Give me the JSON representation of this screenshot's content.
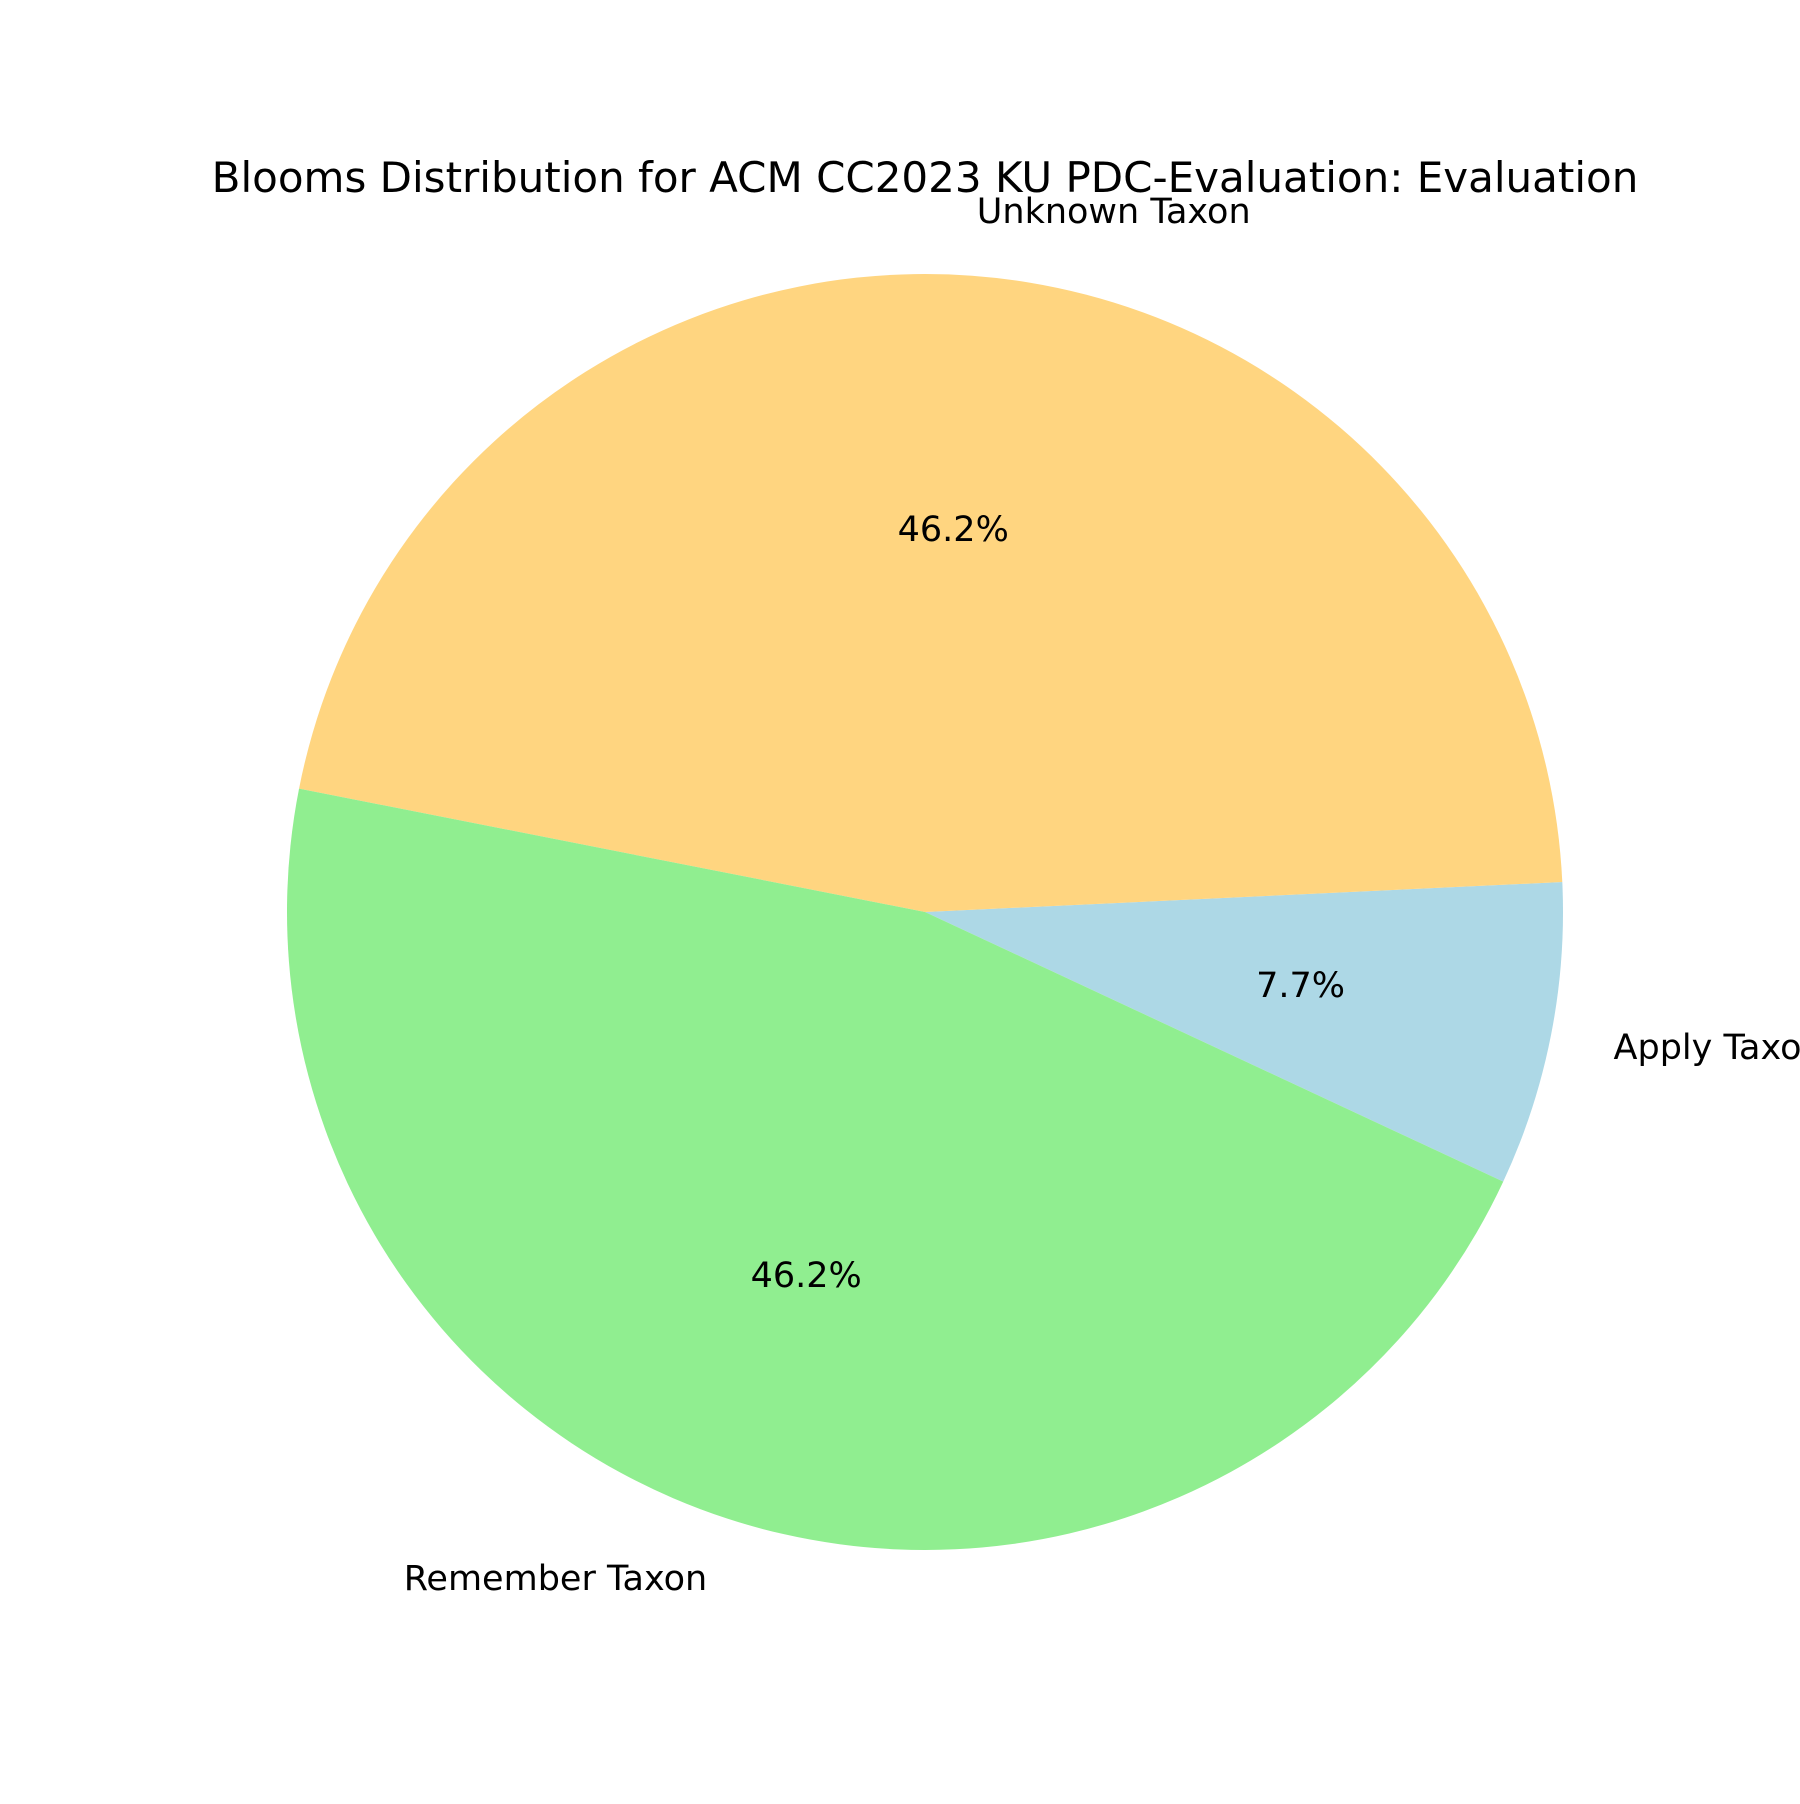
{
  "chart_data": {
    "type": "pie",
    "title": "Blooms Distribution for ACM CC2023 KU PDC-Evaluation: Evaluation",
    "categories": [
      "Apply Taxon",
      "Unknown Taxon",
      "Remember Taxon"
    ],
    "values": [
      7.7,
      46.2,
      46.2
    ],
    "percent_labels": [
      "7.7%",
      "46.2%",
      "46.2%"
    ],
    "colors": [
      "#add8e6",
      "#ffd580",
      "#90ee90"
    ],
    "start_angle_deg": -25,
    "direction": "counterclockwise",
    "legend": "none"
  }
}
